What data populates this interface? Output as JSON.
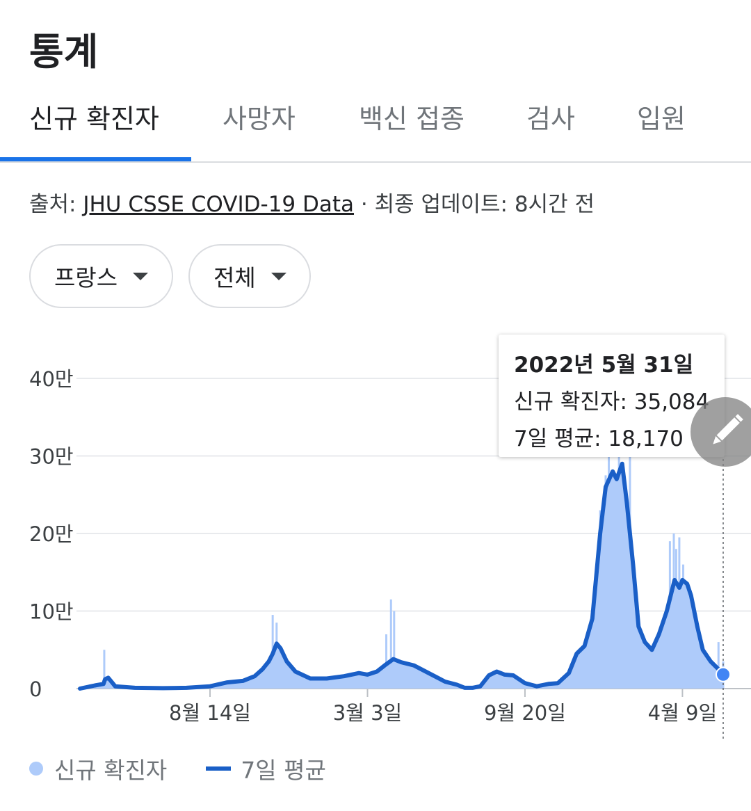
{
  "header": {
    "title": "통계"
  },
  "tabs": [
    {
      "label": "신규 확진자",
      "active": true
    },
    {
      "label": "사망자",
      "active": false
    },
    {
      "label": "백신 접종",
      "active": false
    },
    {
      "label": "검사",
      "active": false
    },
    {
      "label": "입원",
      "active": false
    }
  ],
  "source": {
    "prefix": "출처: ",
    "link": "JHU CSSE COVID-19 Data",
    "separator": " · ",
    "updated": "최종 업데이트: 8시간 전"
  },
  "filters": {
    "country": "프랑스",
    "range": "전체"
  },
  "tooltip": {
    "date": "2022년 5월 31일",
    "cases_row": "신규 확진자: 35,084",
    "avg_row": "7일 평균: 18,170"
  },
  "legend": {
    "daily": "신규 확진자",
    "average": "7일 평균"
  },
  "colors": {
    "bar": "#aecbfa",
    "line": "#1a5fc7",
    "accent": "#1a73e8",
    "marker": "#4285f4"
  },
  "icons": {
    "edit": "pencil-icon",
    "dropdown": "caret-down-icon"
  },
  "chart_data": {
    "type": "area",
    "title": "",
    "xlabel": "",
    "ylabel": "",
    "ylim": [
      0,
      400000
    ],
    "y_ticks": [
      0,
      100000,
      200000,
      300000,
      400000
    ],
    "y_tick_labels": [
      "0",
      "10만",
      "20만",
      "30만",
      "40만"
    ],
    "x_ticks": [
      "8월 14일",
      "3월 3일",
      "9월 20일",
      "4월 9일"
    ],
    "grid": true,
    "legend_position": "bottom-left",
    "series": [
      {
        "name": "7일 평균",
        "kind": "line",
        "x": [
          "2020-03-01",
          "2020-03-20",
          "2020-03-31",
          "2020-04-02",
          "2020-04-06",
          "2020-04-15",
          "2020-05-10",
          "2020-06-15",
          "2020-07-15",
          "2020-08-14",
          "2020-09-05",
          "2020-09-25",
          "2020-10-10",
          "2020-10-20",
          "2020-10-28",
          "2020-11-02",
          "2020-11-07",
          "2020-11-12",
          "2020-11-20",
          "2020-12-01",
          "2020-12-20",
          "2021-01-10",
          "2021-02-01",
          "2021-02-20",
          "2021-03-03",
          "2021-03-15",
          "2021-03-25",
          "2021-04-05",
          "2021-04-15",
          "2021-05-01",
          "2021-05-20",
          "2021-06-10",
          "2021-06-25",
          "2021-07-05",
          "2021-07-15",
          "2021-07-25",
          "2021-08-05",
          "2021-08-15",
          "2021-08-25",
          "2021-09-05",
          "2021-09-20",
          "2021-10-05",
          "2021-10-20",
          "2021-11-01",
          "2021-11-15",
          "2021-11-25",
          "2021-12-05",
          "2021-12-15",
          "2021-12-25",
          "2022-01-01",
          "2022-01-10",
          "2022-01-15",
          "2022-01-22",
          "2022-01-28",
          "2022-02-05",
          "2022-02-12",
          "2022-02-20",
          "2022-03-01",
          "2022-03-10",
          "2022-03-20",
          "2022-03-30",
          "2022-04-05",
          "2022-04-09",
          "2022-04-15",
          "2022-04-20",
          "2022-04-28",
          "2022-05-05",
          "2022-05-15",
          "2022-05-25",
          "2022-05-31"
        ],
        "values": [
          0,
          4000,
          6000,
          12000,
          14000,
          3000,
          1000,
          500,
          1000,
          3000,
          8000,
          10000,
          16000,
          25000,
          35000,
          45000,
          58000,
          52000,
          35000,
          22000,
          13000,
          13000,
          16000,
          20000,
          18000,
          22000,
          30000,
          38000,
          34000,
          30000,
          20000,
          9000,
          5000,
          1000,
          1000,
          3000,
          17000,
          22000,
          18000,
          17000,
          7000,
          3000,
          6000,
          7000,
          20000,
          45000,
          55000,
          90000,
          200000,
          260000,
          280000,
          270000,
          290000,
          240000,
          160000,
          80000,
          60000,
          50000,
          70000,
          100000,
          140000,
          130000,
          140000,
          135000,
          120000,
          80000,
          50000,
          35000,
          25000,
          18170
        ]
      },
      {
        "name": "신규 확진자",
        "kind": "bar",
        "x": [
          "2020-04-01",
          "2020-04-08",
          "2020-11-02",
          "2020-11-07",
          "2021-03-27",
          "2021-04-02",
          "2021-04-06",
          "2021-12-25",
          "2022-01-01",
          "2022-01-05",
          "2022-01-18",
          "2022-01-25",
          "2022-02-01",
          "2022-03-24",
          "2022-03-29",
          "2022-04-01",
          "2022-04-05",
          "2022-04-10",
          "2022-04-15",
          "2022-05-10",
          "2022-05-25",
          "2022-05-31"
        ],
        "values": [
          50000,
          7000,
          95000,
          85000,
          70000,
          115000,
          100000,
          230000,
          275000,
          320000,
          300000,
          250000,
          300000,
          190000,
          200000,
          180000,
          195000,
          160000,
          100000,
          45000,
          60000,
          35084
        ]
      }
    ],
    "tooltip_point": {
      "x": "2022-05-31",
      "daily": 35084,
      "average": 18170
    }
  }
}
